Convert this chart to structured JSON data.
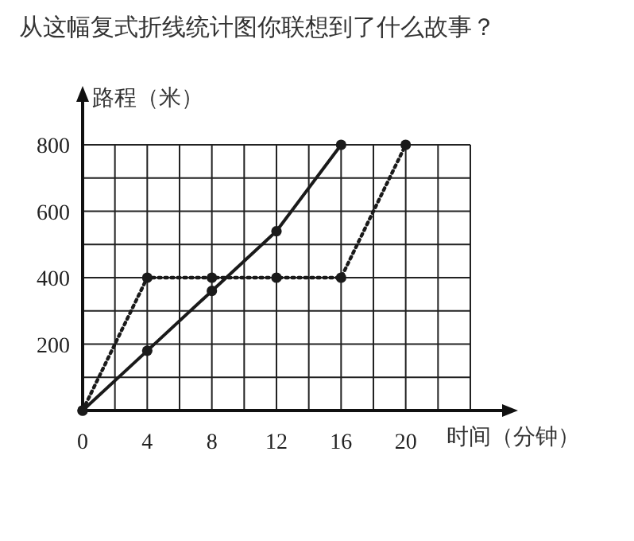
{
  "chart_data": {
    "type": "line",
    "title": "从这幅复式折线统计图你联想到了什么故事？",
    "xlabel": "时间（分钟）",
    "ylabel": "路程（米）",
    "x": [
      0,
      4,
      8,
      12,
      16,
      20
    ],
    "series": [
      {
        "color": "#1a1a1a",
        "line_style": "solid",
        "values": [
          0,
          180,
          360,
          540,
          800,
          null
        ]
      },
      {
        "color": "#1a1a1a",
        "line_style": "dotted",
        "values": [
          0,
          400,
          400,
          400,
          400,
          800
        ]
      }
    ],
    "xlim": [
      0,
      24
    ],
    "ylim": [
      0,
      800
    ],
    "xticks": [
      {
        "value": 0,
        "label": "0"
      },
      {
        "value": 2,
        "label": null
      },
      4,
      {
        "value": 6,
        "label": null
      },
      8,
      {
        "value": 10,
        "label": null
      },
      12,
      {
        "value": 14,
        "label": null
      },
      16,
      {
        "value": 18,
        "label": null
      },
      20,
      {
        "value": 22,
        "label": null
      },
      {
        "value": 24,
        "label": null
      }
    ],
    "yticks": [
      {
        "value": 100,
        "label": null
      },
      200,
      {
        "value": 300,
        "label": null
      },
      400,
      {
        "value": 500,
        "label": null
      },
      600,
      {
        "value": 700,
        "label": null
      },
      800
    ],
    "grid": true,
    "marker": "circle"
  }
}
